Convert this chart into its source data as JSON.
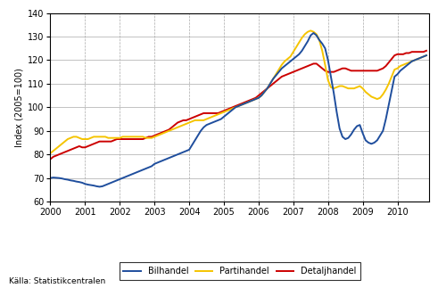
{
  "title": "",
  "ylabel": "Index (2005=100)",
  "source": "Källa: Statistikcentralen",
  "ylim": [
    60,
    140
  ],
  "yticks": [
    60,
    70,
    80,
    90,
    100,
    110,
    120,
    130,
    140
  ],
  "xlim_start": 2000.0,
  "xlim_end": 2010.917,
  "xtick_years": [
    2000,
    2001,
    2002,
    2003,
    2004,
    2005,
    2006,
    2007,
    2008,
    2009,
    2010
  ],
  "line_colors": {
    "Bilhandel": "#1f4e9d",
    "Partihandel": "#f5c400",
    "Detaljhandel": "#cc0000"
  },
  "line_width": 1.4,
  "bilhandel": [
    70.0,
    70.2,
    70.1,
    70.0,
    69.8,
    69.5,
    69.3,
    69.0,
    68.8,
    68.5,
    68.3,
    68.0,
    67.5,
    67.2,
    67.0,
    66.8,
    66.5,
    66.3,
    66.5,
    67.0,
    67.5,
    68.0,
    68.5,
    69.0,
    69.5,
    70.0,
    70.5,
    71.0,
    71.5,
    72.0,
    72.5,
    73.0,
    73.5,
    74.0,
    74.5,
    75.0,
    76.0,
    76.5,
    77.0,
    77.5,
    78.0,
    78.5,
    79.0,
    79.5,
    80.0,
    80.5,
    81.0,
    81.5,
    82.0,
    84.0,
    86.0,
    88.0,
    90.0,
    91.5,
    92.5,
    93.0,
    93.5,
    94.0,
    94.5,
    95.0,
    96.0,
    97.0,
    98.0,
    99.0,
    100.0,
    100.5,
    101.0,
    101.5,
    102.0,
    102.5,
    103.0,
    103.5,
    104.0,
    105.0,
    106.5,
    108.0,
    110.0,
    112.0,
    113.5,
    115.0,
    116.5,
    117.5,
    118.5,
    119.5,
    120.5,
    121.5,
    122.5,
    124.0,
    126.0,
    128.0,
    130.5,
    131.5,
    130.5,
    128.5,
    127.0,
    125.0,
    120.0,
    113.0,
    106.0,
    98.0,
    91.0,
    87.5,
    86.5,
    87.0,
    88.5,
    90.5,
    92.0,
    92.5,
    89.0,
    86.0,
    85.0,
    84.5,
    85.0,
    86.0,
    88.0,
    90.0,
    95.0,
    101.0,
    107.0,
    113.0,
    114.0,
    115.5,
    116.5,
    117.5,
    118.5,
    119.5,
    120.0,
    120.5,
    121.0,
    121.5,
    122.0
  ],
  "partihandel": [
    80.5,
    81.5,
    82.5,
    83.5,
    84.5,
    85.5,
    86.5,
    87.0,
    87.5,
    87.5,
    87.0,
    86.5,
    86.5,
    86.5,
    87.0,
    87.5,
    87.5,
    87.5,
    87.5,
    87.5,
    87.0,
    87.0,
    87.0,
    87.0,
    87.0,
    87.5,
    87.5,
    87.5,
    87.5,
    87.5,
    87.5,
    87.5,
    87.5,
    87.0,
    87.0,
    87.0,
    87.5,
    88.0,
    88.5,
    89.0,
    89.5,
    90.0,
    90.5,
    91.0,
    91.5,
    92.0,
    92.5,
    93.0,
    93.5,
    94.0,
    94.5,
    94.5,
    94.5,
    94.5,
    95.0,
    95.5,
    96.0,
    96.5,
    97.0,
    97.5,
    98.0,
    98.5,
    99.0,
    99.5,
    100.0,
    100.5,
    101.0,
    101.5,
    102.0,
    102.5,
    103.0,
    103.5,
    104.0,
    105.0,
    106.5,
    108.0,
    110.0,
    112.0,
    114.0,
    116.0,
    118.0,
    119.5,
    120.5,
    121.5,
    123.5,
    125.5,
    127.5,
    129.5,
    131.0,
    132.0,
    132.5,
    132.0,
    131.0,
    128.5,
    124.0,
    118.0,
    111.5,
    108.5,
    108.0,
    108.5,
    109.0,
    109.0,
    108.5,
    108.0,
    108.0,
    108.0,
    108.5,
    109.0,
    108.0,
    106.5,
    105.5,
    104.5,
    104.0,
    103.5,
    104.0,
    105.5,
    107.5,
    110.0,
    113.0,
    116.0,
    116.5,
    117.5,
    118.0,
    118.5,
    119.0,
    119.5,
    120.0,
    120.5,
    121.0,
    121.5,
    122.0
  ],
  "detaljhandel": [
    78.0,
    79.0,
    79.5,
    80.0,
    80.5,
    81.0,
    81.5,
    82.0,
    82.5,
    83.0,
    83.5,
    83.0,
    83.0,
    83.5,
    84.0,
    84.5,
    85.0,
    85.5,
    85.5,
    85.5,
    85.5,
    85.5,
    86.0,
    86.5,
    86.5,
    86.5,
    86.5,
    86.5,
    86.5,
    86.5,
    86.5,
    86.5,
    86.5,
    87.0,
    87.5,
    87.5,
    88.0,
    88.5,
    89.0,
    89.5,
    90.0,
    90.5,
    91.5,
    92.5,
    93.5,
    94.0,
    94.5,
    94.5,
    95.0,
    95.5,
    96.0,
    96.5,
    97.0,
    97.5,
    97.5,
    97.5,
    97.5,
    97.5,
    97.5,
    98.0,
    98.5,
    99.0,
    99.5,
    100.0,
    100.5,
    101.0,
    101.5,
    102.0,
    102.5,
    103.0,
    103.5,
    104.0,
    105.0,
    106.0,
    107.0,
    108.0,
    109.0,
    110.0,
    111.0,
    112.0,
    113.0,
    113.5,
    114.0,
    114.5,
    115.0,
    115.5,
    116.0,
    116.5,
    117.0,
    117.5,
    118.0,
    118.5,
    118.5,
    117.5,
    116.5,
    115.5,
    115.0,
    115.0,
    115.0,
    115.5,
    116.0,
    116.5,
    116.5,
    116.0,
    115.5,
    115.5,
    115.5,
    115.5,
    115.5,
    115.5,
    115.5,
    115.5,
    115.5,
    115.5,
    116.0,
    116.5,
    117.5,
    119.0,
    120.5,
    122.0,
    122.5,
    122.5,
    122.5,
    123.0,
    123.0,
    123.5,
    123.5,
    123.5,
    123.5,
    123.5,
    124.0
  ]
}
